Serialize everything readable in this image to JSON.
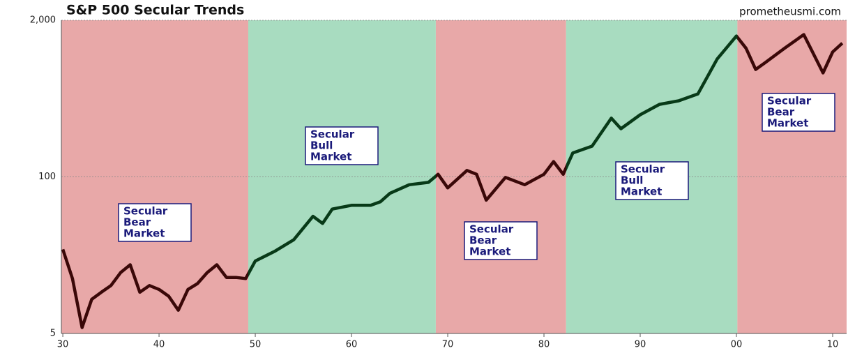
{
  "chart_data": {
    "type": "line",
    "title": "S&P 500 Secular Trends",
    "source": "prometheusmi.com",
    "log_scale": true,
    "grid": true,
    "xlim": [
      1929.85,
      2011.45
    ],
    "ylim": [
      5,
      2000
    ],
    "yticks": [
      5,
      100,
      {
        "value": 2000,
        "label": "2,000"
      }
    ],
    "xticks": [
      {
        "value": 1930,
        "label": "30"
      },
      {
        "value": 1940,
        "label": "40"
      },
      {
        "value": 1950,
        "label": "50"
      },
      {
        "value": 1960,
        "label": "60"
      },
      {
        "value": 1970,
        "label": "70"
      },
      {
        "value": 1980,
        "label": "80"
      },
      {
        "value": 1990,
        "label": "90"
      },
      {
        "value": 2000,
        "label": "00"
      },
      {
        "value": 2010,
        "label": "10"
      }
    ],
    "regions": [
      {
        "start": 1929.85,
        "end": 1949.27,
        "label": [
          "Secular",
          "Bear",
          "Market"
        ],
        "color": "#e8a8a8",
        "line_color": "#3a0808"
      },
      {
        "start": 1949.27,
        "end": 1968.76,
        "label": [
          "Secular",
          "Bull",
          "Market"
        ],
        "color": "#a8dcc0",
        "line_color": "#083a18"
      },
      {
        "start": 1968.76,
        "end": 1982.3,
        "label": [
          "Secular",
          "Bear",
          "Market"
        ],
        "color": "#e8a8a8",
        "line_color": "#3a0808"
      },
      {
        "start": 1982.3,
        "end": 2000.1,
        "label": [
          "Secular",
          "Bull",
          "Market"
        ],
        "color": "#a8dcc0",
        "line_color": "#083a18"
      },
      {
        "start": 2000.1,
        "end": 2011.45,
        "label": [
          "Secular",
          "Bear",
          "Market"
        ],
        "color": "#e8a8a8",
        "line_color": "#3a0808"
      }
    ],
    "x": [
      1930,
      1931,
      1932,
      1933,
      1934,
      1935,
      1936,
      1937,
      1938,
      1939,
      1940,
      1941,
      1942,
      1943,
      1944,
      1945,
      1946,
      1947,
      1948,
      1949,
      1950,
      1952,
      1954,
      1956,
      1957,
      1958,
      1960,
      1962,
      1963,
      1964,
      1966,
      1968,
      1969,
      1970,
      1972,
      1973,
      1974,
      1976,
      1978,
      1980,
      1981,
      1982,
      1983,
      1985,
      1987,
      1988,
      1990,
      1992,
      1994,
      1996,
      1998,
      2000,
      2001,
      2002,
      2003,
      2005,
      2007,
      2009,
      2010,
      2011
    ],
    "values": [
      25,
      14.3,
      5.6,
      9.6,
      11,
      12.5,
      16,
      18.6,
      11,
      12.5,
      11.6,
      10.2,
      7.8,
      11.6,
      13,
      16,
      18.6,
      14.6,
      14.6,
      14.3,
      20,
      24,
      30,
      47,
      41,
      54,
      58,
      58,
      62,
      73,
      86,
      90,
      105,
      81,
      113,
      105,
      64,
      99,
      86,
      105,
      134,
      105,
      158,
      180,
      307,
      251,
      328,
      400,
      428,
      489,
      953,
      1480,
      1170,
      780,
      890,
      1170,
      1520,
      730,
      1090,
      1290
    ]
  }
}
